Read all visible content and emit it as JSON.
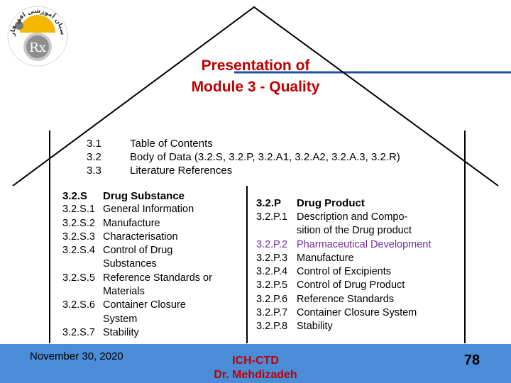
{
  "title_line1": "Presentation of",
  "title_line2": "Module 3 - Quality",
  "toc": {
    "numbers": [
      "3.1",
      "3.2",
      "3.3"
    ],
    "labels": [
      "Table of Contents",
      "Body of Data (3.2.S, 3.2.P, 3.2.A1, 3.2.A2, 3.2.A.3, 3.2.R)",
      "Literature References"
    ]
  },
  "drug_substance": {
    "heading_num": "3.2.S",
    "heading_label": "Drug Substance",
    "items": [
      {
        "num": "3.2.S.1",
        "label": "General Information"
      },
      {
        "num": "3.2.S.2",
        "label": "Manufacture"
      },
      {
        "num": "3.2.S.3",
        "label": "Characterisation"
      },
      {
        "num": "3.2.S.4",
        "label": "Control of Drug",
        "cont": "Substances"
      },
      {
        "num": "3.2.S.5",
        "label": "Reference Standards or",
        "cont": "Materials"
      },
      {
        "num": "3.2.S.6",
        "label": "Container Closure",
        "cont": "System"
      },
      {
        "num": "3.2.S.7",
        "label": "Stability"
      }
    ]
  },
  "drug_product": {
    "heading_num": "3.2.P",
    "heading_label": "Drug Product",
    "items": [
      {
        "num": "3.2.P.1",
        "label": "Description and Compo-",
        "cont": "sition of the Drug product"
      },
      {
        "num": "3.2.P.2",
        "label": "Pharmaceutical Development"
      },
      {
        "num": "3.2.P.3",
        "label": "Manufacture"
      },
      {
        "num": "3.2.P.4",
        "label": "Control of Excipients"
      },
      {
        "num": "3.2.P.5",
        "label": "Control of Drug Product"
      },
      {
        "num": "3.2.P.6",
        "label": "Reference Standards"
      },
      {
        "num": "3.2.P.7",
        "label": "Container Closure System"
      },
      {
        "num": "3.2.P.8",
        "label": "Stability"
      }
    ]
  },
  "footer": {
    "date": "November 30, 2020",
    "center_line1": "ICH-CTD",
    "center_line2": "Dr. Mehdizadeh",
    "page": "78"
  },
  "logo": {
    "text": "Rx",
    "arc_text": "پارسیان آموزشی افق فارمد"
  },
  "colors": {
    "title": "#c00000",
    "highlight": "#7030a0",
    "footer_bg": "#4a8cd6",
    "rule": "#1f4fa0"
  }
}
